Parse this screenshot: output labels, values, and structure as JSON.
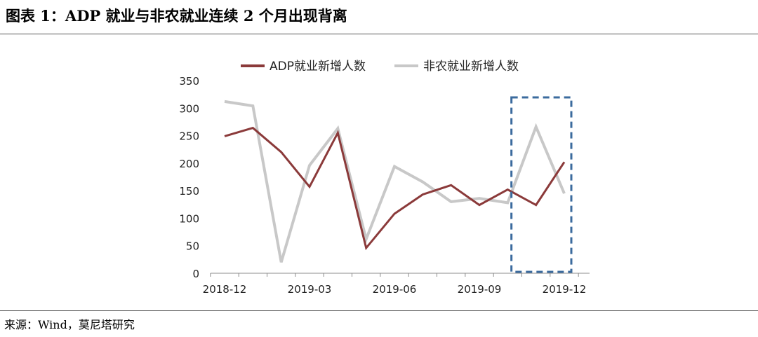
{
  "header": {
    "title": "图表 1：ADP 就业与非农就业连续 2 个月出现背离"
  },
  "footer": {
    "source": "来源：Wind，莫尼塔研究"
  },
  "chart_data": {
    "type": "line",
    "title": "",
    "xlabel": "",
    "ylabel": "",
    "ylim": [
      0,
      350
    ],
    "yticks": [
      "0",
      "50",
      "100",
      "150",
      "200",
      "250",
      "300",
      "350"
    ],
    "x": [
      "2018-12",
      "2019-01",
      "2019-02",
      "2019-03",
      "2019-04",
      "2019-05",
      "2019-06",
      "2019-07",
      "2019-08",
      "2019-09",
      "2019-10",
      "2019-11",
      "2019-12"
    ],
    "xticks": [
      "2018-12",
      "2019-03",
      "2019-06",
      "2019-09",
      "2019-12"
    ],
    "legend_position": "top",
    "grid": false,
    "series": [
      {
        "name": "ADP就业新增人数",
        "color": "#8B3A3A",
        "values": [
          249,
          264,
          220,
          157,
          255,
          46,
          108,
          143,
          160,
          124,
          152,
          124,
          202
        ]
      },
      {
        "name": "非农就业新增人数",
        "color": "#C8C8C8",
        "values": [
          312,
          304,
          20,
          196,
          263,
          62,
          194,
          166,
          130,
          136,
          128,
          266,
          145
        ]
      }
    ],
    "highlight": {
      "style": "dashed-box",
      "color": "#3B6B9E",
      "x_range": [
        "2019-11",
        "2019-12"
      ]
    }
  }
}
